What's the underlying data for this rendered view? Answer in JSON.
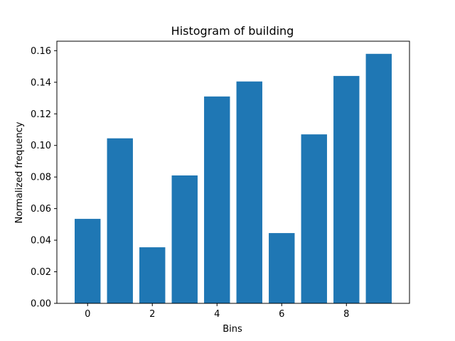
{
  "chart_data": {
    "type": "bar",
    "title": "Histogram of building",
    "xlabel": "Bins",
    "ylabel": "Normalized frequency",
    "categories": [
      0,
      1,
      2,
      3,
      4,
      5,
      6,
      7,
      8,
      9
    ],
    "values": [
      0.0535,
      0.1045,
      0.0355,
      0.081,
      0.131,
      0.1405,
      0.0445,
      0.107,
      0.144,
      0.158
    ],
    "xlim": [
      -0.95,
      9.95
    ],
    "ylim": [
      0,
      0.166
    ],
    "xticks": [
      0,
      2,
      4,
      6,
      8
    ],
    "yticks": [
      0.0,
      0.02,
      0.04,
      0.06,
      0.08,
      0.1,
      0.12,
      0.14,
      0.16
    ],
    "ytick_labels": [
      "0.00",
      "0.02",
      "0.04",
      "0.06",
      "0.08",
      "0.10",
      "0.12",
      "0.14",
      "0.16"
    ],
    "grid": false,
    "bar_color": "#1f77b4"
  }
}
